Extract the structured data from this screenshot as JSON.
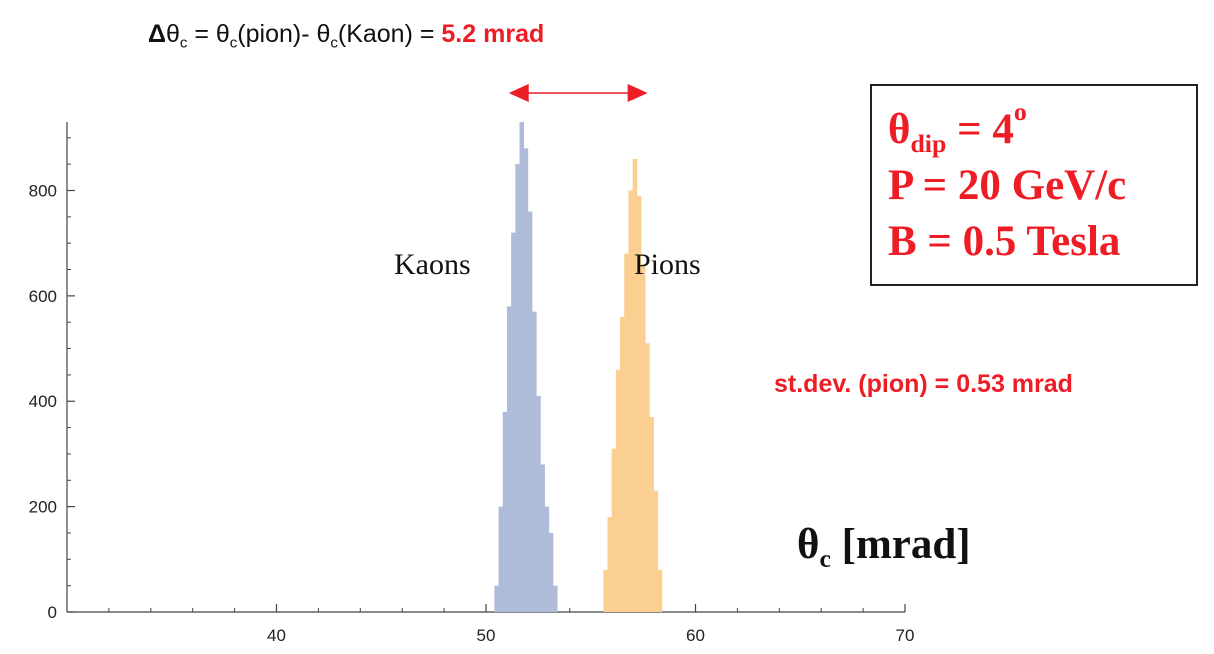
{
  "header": {
    "delta_symbol": "Δ",
    "theta": "θ",
    "sub_c": "c",
    "eq_mid": " = ",
    "pion_text": "(pion)- ",
    "kaon_text": "(Kaon) = ",
    "value": "5.2 mrad"
  },
  "params": {
    "theta": "θ",
    "dip_sub": "dip",
    "dip_rest": " = 4",
    "dip_sup": "o",
    "momentum": "P = 20 GeV/c",
    "field": "B = 0.5 Tesla"
  },
  "stdev_label": "st.dev. (pion) = 0.53 mrad",
  "xunit": {
    "theta": "θ",
    "sub": "c",
    "rest": " [mrad]"
  },
  "colors": {
    "kaon": "#aebcd9",
    "pion": "#fbcf91",
    "accent": "#ee1c25",
    "axis": "#444444"
  },
  "chart_data": {
    "type": "bar",
    "xlim": [
      30,
      70
    ],
    "ylim": [
      0,
      930
    ],
    "xticks": [
      40,
      50,
      60,
      70
    ],
    "yticks": [
      0,
      200,
      400,
      600,
      800
    ],
    "x_tick_labels": [
      "40",
      "50",
      "60",
      "70"
    ],
    "y_tick_labels": [
      "0",
      "200",
      "400",
      "600",
      "800"
    ],
    "bin_width": 0.2,
    "arrow_range": [
      51.8,
      57.0
    ],
    "series": [
      {
        "name": "Kaons",
        "bin_start": 50.4,
        "values": [
          50,
          200,
          380,
          580,
          720,
          850,
          930,
          880,
          760,
          570,
          410,
          280,
          200,
          150,
          50
        ]
      },
      {
        "name": "Pions",
        "bin_start": 55.6,
        "values": [
          80,
          180,
          310,
          460,
          560,
          680,
          800,
          860,
          790,
          660,
          510,
          370,
          230,
          80
        ]
      }
    ]
  }
}
